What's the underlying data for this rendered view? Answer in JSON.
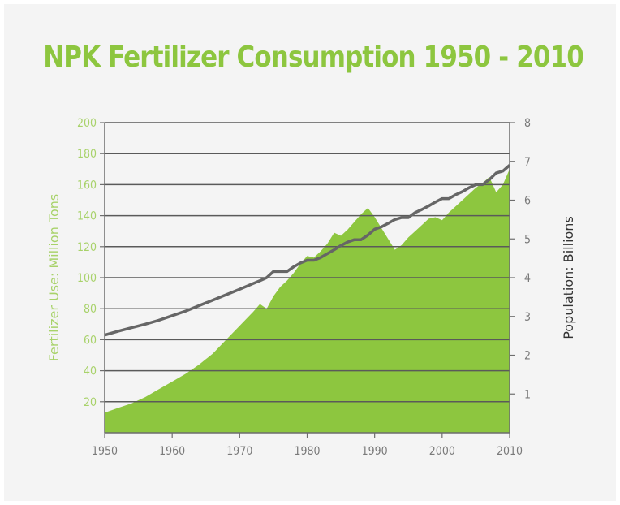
{
  "chart_data": {
    "type": "area",
    "title": "NPK Fertilizer Consumption 1950 - 2010",
    "x": [
      1950,
      1952,
      1954,
      1956,
      1958,
      1960,
      1962,
      1964,
      1966,
      1968,
      1970,
      1972,
      1973,
      1974,
      1975,
      1976,
      1977,
      1978,
      1979,
      1980,
      1981,
      1982,
      1983,
      1984,
      1985,
      1986,
      1987,
      1988,
      1989,
      1990,
      1991,
      1992,
      1993,
      1994,
      1995,
      1996,
      1997,
      1998,
      1999,
      2000,
      2001,
      2002,
      2003,
      2004,
      2005,
      2006,
      2007,
      2008,
      2009,
      2010
    ],
    "series": [
      {
        "name": "Fertilizer Use: Million Tons",
        "axis": "left",
        "values": [
          13,
          16,
          19,
          23,
          28,
          33,
          38,
          44,
          51,
          60,
          69,
          78,
          83,
          80,
          88,
          94,
          98,
          103,
          109,
          114,
          113,
          117,
          122,
          129,
          127,
          131,
          136,
          141,
          145,
          139,
          132,
          125,
          118,
          121,
          126,
          130,
          134,
          138,
          139,
          137,
          142,
          146,
          150,
          154,
          158,
          161,
          165,
          155,
          160,
          170
        ]
      },
      {
        "name": "Population: Billions",
        "axis": "right",
        "values": [
          2.52,
          2.62,
          2.71,
          2.8,
          2.9,
          3.02,
          3.14,
          3.28,
          3.42,
          3.56,
          3.7,
          3.85,
          3.92,
          4.0,
          4.16,
          4.16,
          4.16,
          4.28,
          4.38,
          4.45,
          4.45,
          4.52,
          4.62,
          4.72,
          4.83,
          4.92,
          4.98,
          4.98,
          5.1,
          5.25,
          5.31,
          5.4,
          5.5,
          5.55,
          5.55,
          5.68,
          5.76,
          5.85,
          5.95,
          6.04,
          6.04,
          6.14,
          6.22,
          6.32,
          6.4,
          6.4,
          6.53,
          6.7,
          6.75,
          6.9
        ]
      }
    ],
    "xlabel": "",
    "ylabel": "Fertilizer Use: Million Tons",
    "ylabel_right": "Population: Billions",
    "xlim": [
      1950,
      2010
    ],
    "ylim": [
      0,
      200
    ],
    "ylim_right": [
      0,
      8
    ],
    "x_ticks": [
      1950,
      1960,
      1970,
      1980,
      1990,
      2000,
      2010
    ],
    "y_ticks": [
      20,
      40,
      60,
      80,
      100,
      120,
      140,
      160,
      180,
      200
    ],
    "y_ticks_right": [
      1,
      2,
      3,
      4,
      5,
      6,
      7,
      8
    ],
    "grid": true,
    "colors": {
      "title": "#8dc63f",
      "area": "#8dc63f",
      "left_axis_text": "#a8d26a",
      "population_line": "#666666",
      "grid": "#5a5a5a",
      "frame": "#6d6d6d",
      "tick_text": "#7a7a7a",
      "right_axis_text": "#333333"
    }
  }
}
